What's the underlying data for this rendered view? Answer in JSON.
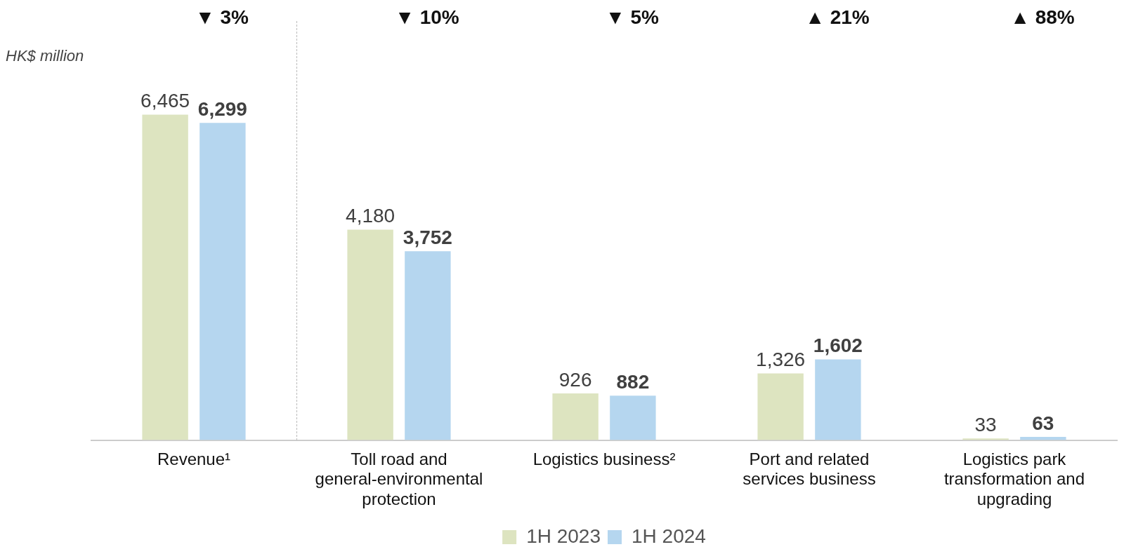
{
  "chart_data": {
    "type": "bar",
    "ylabel": "HK$ million",
    "categories": [
      "Revenue¹",
      "Toll road and general-environmental protection",
      "Logistics business²",
      "Port and related services business",
      "Logistics park transformation and upgrading"
    ],
    "series": [
      {
        "name": "1H 2023",
        "color": "#dde4c0",
        "values": [
          6465,
          4180,
          926,
          1326,
          33
        ],
        "value_labels": [
          "6,465",
          "4,180",
          "926",
          "1,326",
          "33"
        ]
      },
      {
        "name": "1H 2024",
        "color": "#b5d6ef",
        "values": [
          6299,
          3752,
          882,
          1602,
          63
        ],
        "value_labels": [
          "6,299",
          "3,752",
          "882",
          "1,602",
          "63"
        ]
      }
    ],
    "annotations": [
      "▼ 3%",
      "▼ 10%",
      "▼ 5%",
      "▲ 21%",
      "▲ 88%"
    ],
    "grid": false,
    "legend": "bottom"
  }
}
